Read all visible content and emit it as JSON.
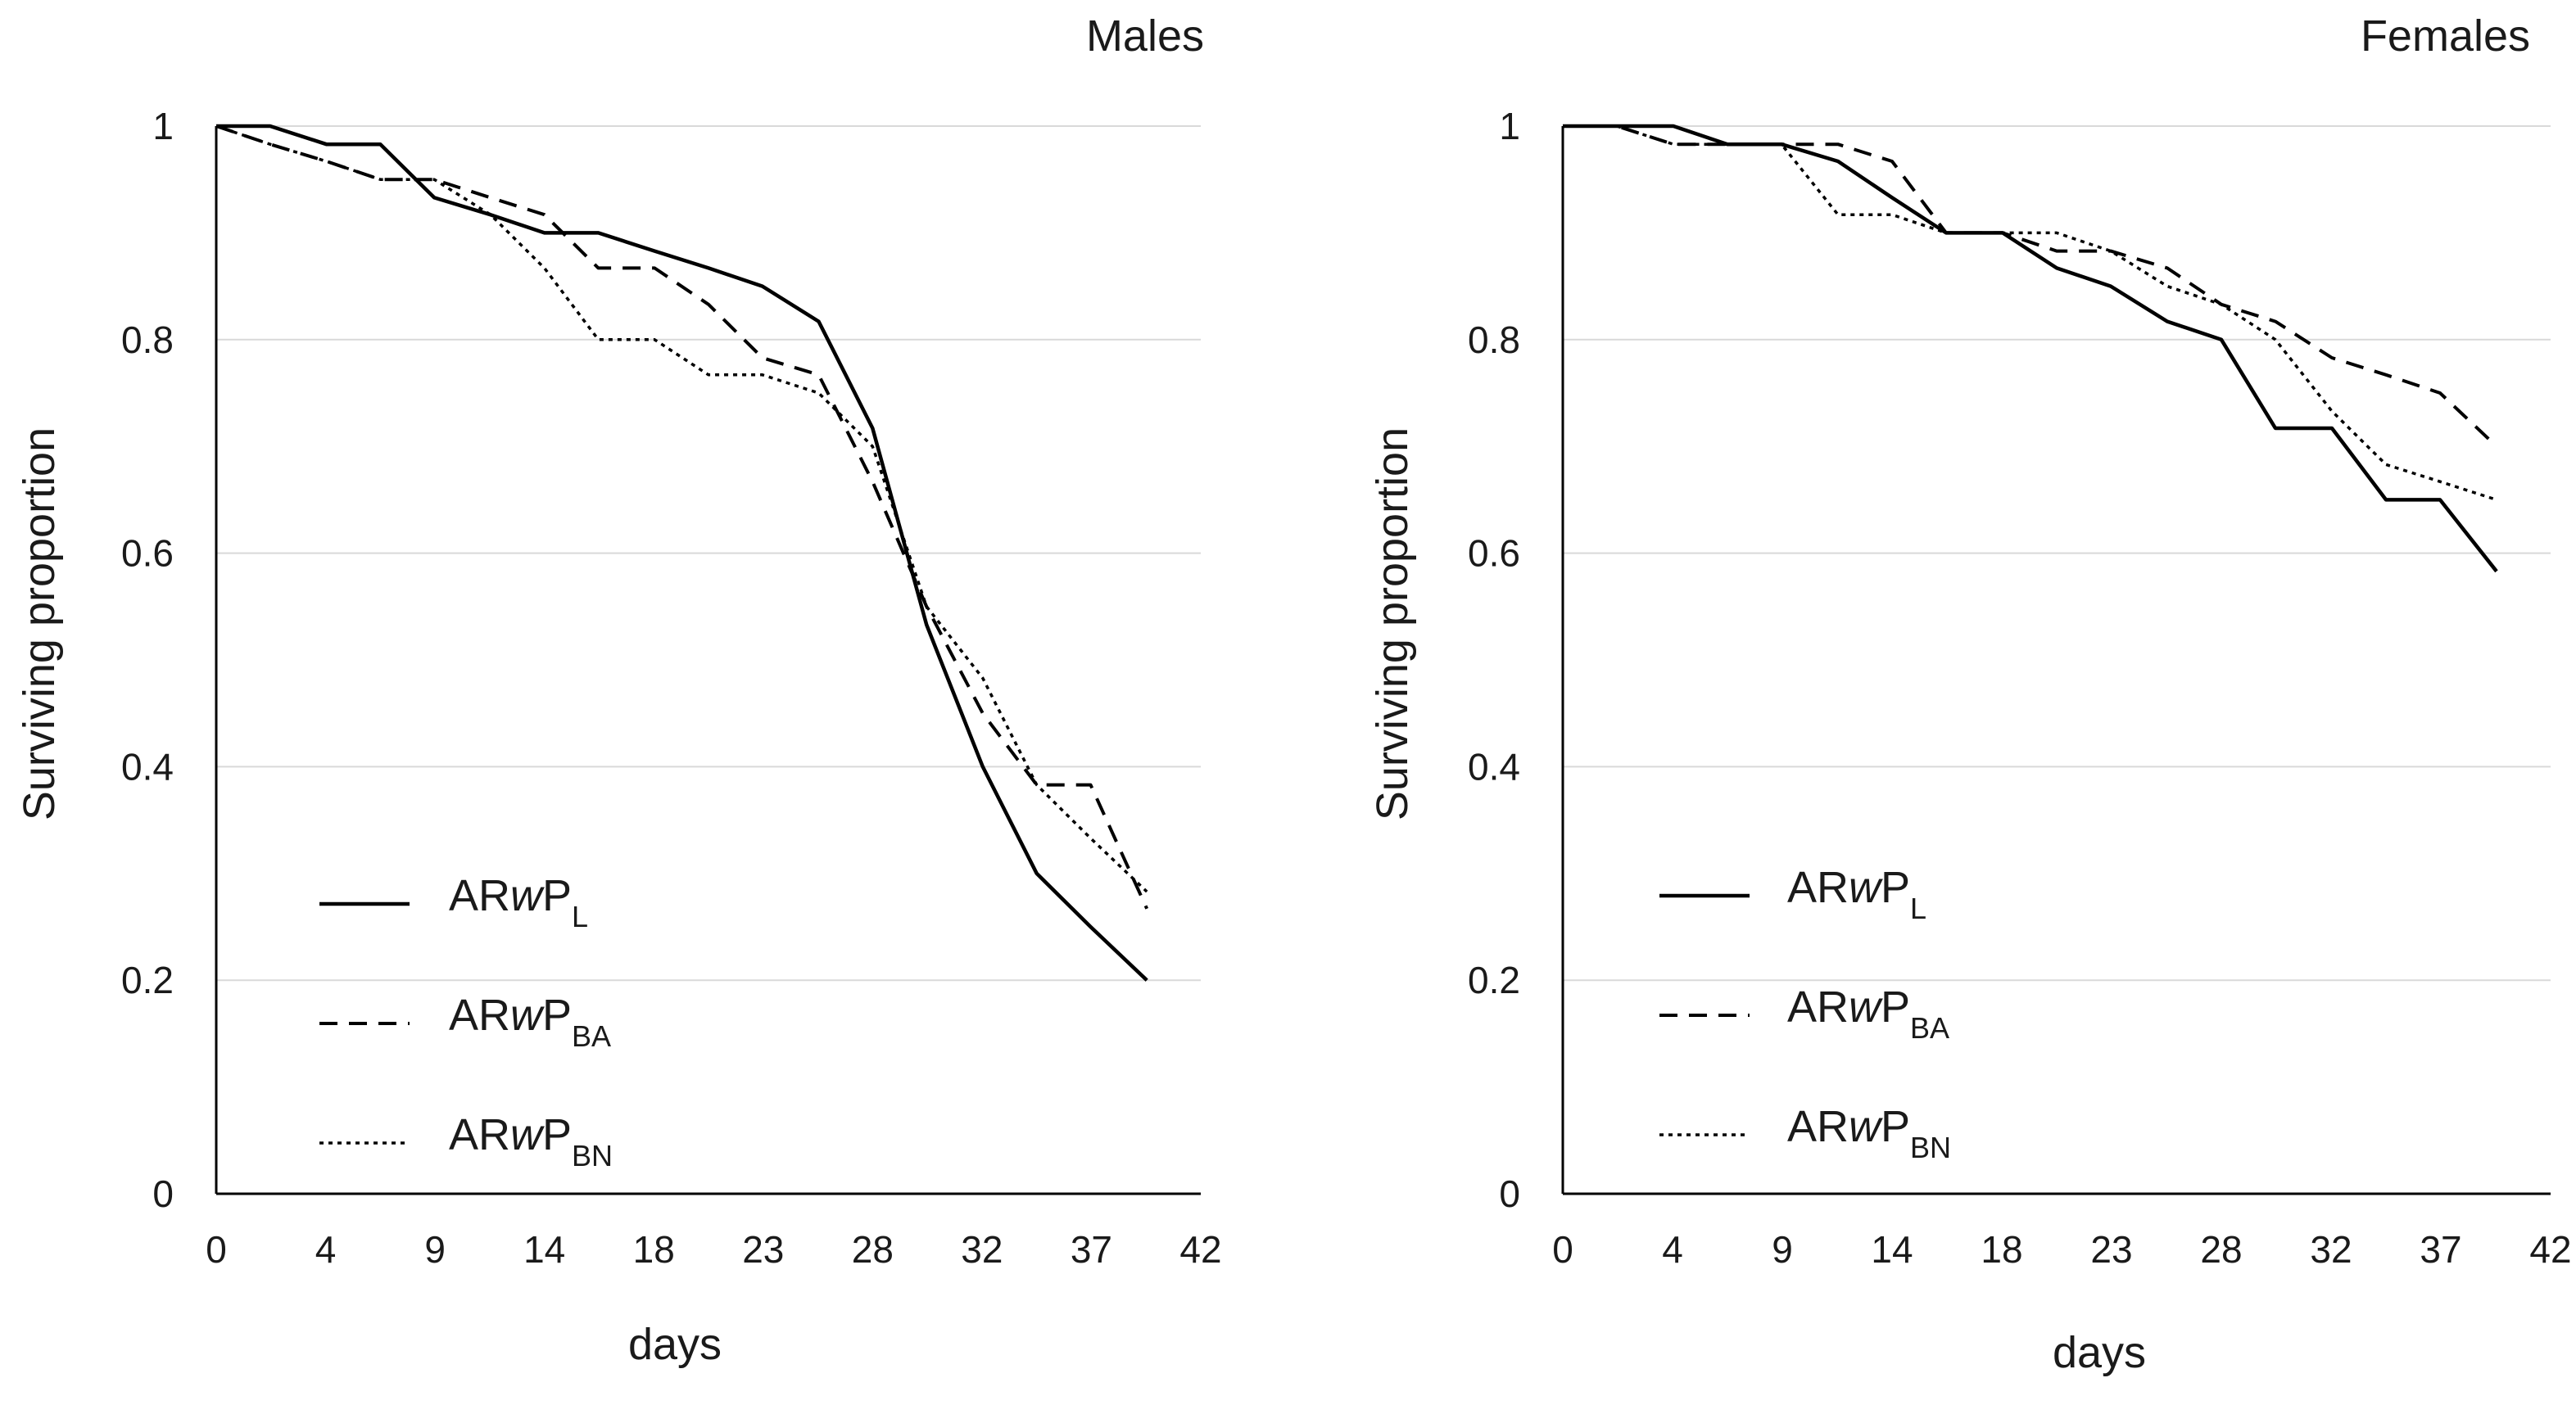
{
  "chart_data": [
    {
      "type": "line",
      "title": "Males",
      "xlabel": "days",
      "ylabel": "Surviving proportion",
      "xlim": [
        0,
        42
      ],
      "ylim": [
        0,
        1
      ],
      "x_ticks": [
        "0",
        "4",
        "9",
        "14",
        "18",
        "23",
        "28",
        "32",
        "37",
        "42"
      ],
      "y_ticks": [
        "0",
        "0.2",
        "0.4",
        "0.6",
        "0.8",
        "1"
      ],
      "grid": "horizontal",
      "legend_position": "bottom-left",
      "series": [
        {
          "name": "ARwPL",
          "base": "AR",
          "italic": "w",
          "letter": "P",
          "sub": "L",
          "style": "solid",
          "x": [
            0,
            2.3,
            4.7,
            7,
            9.3,
            11.7,
            14,
            16.3,
            18.7,
            21,
            23.3,
            25.7,
            28,
            30.3,
            32.7,
            35,
            37.3,
            39.7
          ],
          "y": [
            1,
            1,
            0.983,
            0.983,
            0.933,
            0.917,
            0.9,
            0.9,
            0.883,
            0.867,
            0.85,
            0.817,
            0.717,
            0.533,
            0.4,
            0.3,
            0.25,
            0.2
          ]
        },
        {
          "name": "ARwPBA",
          "base": "AR",
          "italic": "w",
          "letter": "P",
          "sub": "BA",
          "style": "dashed",
          "x": [
            0,
            2.3,
            4.7,
            7,
            9.3,
            11.7,
            14,
            16.3,
            18.7,
            21,
            23.3,
            25.7,
            28,
            30.3,
            32.7,
            35,
            37.3,
            39.7
          ],
          "y": [
            1,
            0.983,
            0.967,
            0.95,
            0.95,
            0.933,
            0.917,
            0.867,
            0.867,
            0.833,
            0.783,
            0.767,
            0.667,
            0.55,
            0.45,
            0.383,
            0.383,
            0.267
          ]
        },
        {
          "name": "ARwPBN",
          "base": "AR",
          "italic": "w",
          "letter": "P",
          "sub": "BN",
          "style": "dotted",
          "x": [
            0,
            2.3,
            4.7,
            7,
            9.3,
            11.7,
            14,
            16.3,
            18.7,
            21,
            23.3,
            25.7,
            28,
            30.3,
            32.7,
            35,
            37.3,
            39.7
          ],
          "y": [
            1,
            0.983,
            0.967,
            0.95,
            0.95,
            0.917,
            0.867,
            0.8,
            0.8,
            0.767,
            0.767,
            0.75,
            0.7,
            0.55,
            0.483,
            0.383,
            0.333,
            0.283
          ]
        }
      ]
    },
    {
      "type": "line",
      "title": "Females",
      "xlabel": "days",
      "ylabel": "Surviving proportion",
      "xlim": [
        0,
        42
      ],
      "ylim": [
        0,
        1
      ],
      "x_ticks": [
        "0",
        "4",
        "9",
        "14",
        "18",
        "23",
        "28",
        "32",
        "37",
        "42"
      ],
      "y_ticks": [
        "0",
        "0.2",
        "0.4",
        "0.6",
        "0.8",
        "1"
      ],
      "grid": "horizontal",
      "legend_position": "bottom-left",
      "series": [
        {
          "name": "ARwPL",
          "base": "AR",
          "italic": "w",
          "letter": "P",
          "sub": "L",
          "style": "solid",
          "x": [
            0,
            2.3,
            4.7,
            7,
            9.3,
            11.7,
            14,
            16.3,
            18.7,
            21,
            23.3,
            25.7,
            28,
            30.3,
            32.7,
            35,
            37.3,
            39.7
          ],
          "y": [
            1,
            1,
            1,
            0.983,
            0.983,
            0.967,
            0.933,
            0.9,
            0.9,
            0.867,
            0.85,
            0.817,
            0.8,
            0.717,
            0.717,
            0.65,
            0.65,
            0.583
          ]
        },
        {
          "name": "ARwPBA",
          "base": "AR",
          "italic": "w",
          "letter": "P",
          "sub": "BA",
          "style": "dashed",
          "x": [
            0,
            2.3,
            4.7,
            7,
            9.3,
            11.7,
            14,
            16.3,
            18.7,
            21,
            23.3,
            25.7,
            28,
            30.3,
            32.7,
            35,
            37.3,
            39.7
          ],
          "y": [
            1,
            1,
            0.983,
            0.983,
            0.983,
            0.983,
            0.967,
            0.9,
            0.9,
            0.883,
            0.883,
            0.867,
            0.833,
            0.817,
            0.783,
            0.767,
            0.75,
            0.7
          ]
        },
        {
          "name": "ARwPBN",
          "base": "AR",
          "italic": "w",
          "letter": "P",
          "sub": "BN",
          "style": "dotted",
          "x": [
            0,
            2.3,
            4.7,
            7,
            9.3,
            11.7,
            14,
            16.3,
            18.7,
            21,
            23.3,
            25.7,
            28,
            30.3,
            32.7,
            35,
            37.3,
            39.7
          ],
          "y": [
            1,
            1,
            0.983,
            0.983,
            0.983,
            0.917,
            0.917,
            0.9,
            0.9,
            0.9,
            0.883,
            0.85,
            0.833,
            0.8,
            0.733,
            0.683,
            0.667,
            0.65
          ]
        }
      ]
    }
  ]
}
